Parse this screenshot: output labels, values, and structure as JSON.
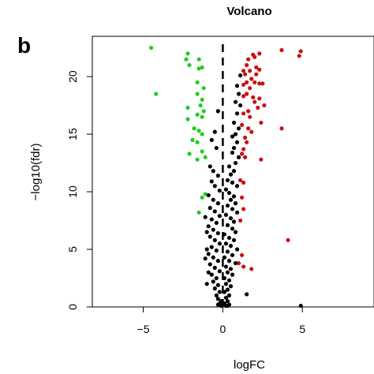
{
  "chart_data": {
    "type": "scatter",
    "title": "Volcano",
    "panel_label": "b",
    "xlabel": "logFC",
    "ylabel": "−log10(fdr)",
    "xlim": [
      -8.2,
      9.5
    ],
    "ylim": [
      0,
      23.5
    ],
    "xticks": [
      -5,
      0,
      5
    ],
    "xtick_labels": [
      "−5",
      "0",
      "5"
    ],
    "yticks": [
      0,
      5,
      10,
      15,
      20
    ],
    "ytick_labels": [
      "0",
      "5",
      "10",
      "15",
      "20"
    ],
    "grid": false,
    "legend": "none",
    "threshold_line_x": 0,
    "colors": {
      "down": "#22cc22",
      "up": "#cc1111",
      "ns": "#000000",
      "threshold": "#000000"
    },
    "series": [
      {
        "color_key": "down",
        "points": [
          [
            -4.5,
            22.5
          ],
          [
            -4.2,
            18.5
          ],
          [
            -2.2,
            22
          ],
          [
            -2.3,
            21.5
          ],
          [
            -2.1,
            21
          ],
          [
            -1.5,
            21.5
          ],
          [
            -1.5,
            20.7
          ],
          [
            -1.3,
            20.8
          ],
          [
            -1.6,
            19.5
          ],
          [
            -1.2,
            19
          ],
          [
            -1.6,
            18.5
          ],
          [
            -1.3,
            18
          ],
          [
            -1.4,
            17.5
          ],
          [
            -1.2,
            17
          ],
          [
            -2.2,
            17.3
          ],
          [
            -1.6,
            16.7
          ],
          [
            -1.3,
            16.5
          ],
          [
            -2.2,
            16.3
          ],
          [
            -1.8,
            15.5
          ],
          [
            -1.5,
            15.3
          ],
          [
            -1.3,
            15
          ],
          [
            -1.9,
            14.5
          ],
          [
            -1.6,
            14.3
          ],
          [
            -1.3,
            13.5
          ],
          [
            -2.1,
            13.3
          ],
          [
            -1.1,
            13
          ],
          [
            -1.6,
            12.8
          ],
          [
            -1.3,
            9.5
          ],
          [
            -1.1,
            9.8
          ],
          [
            -1.5,
            8.2
          ]
        ]
      },
      {
        "color_key": "up",
        "points": [
          [
            3.7,
            22.3
          ],
          [
            4.9,
            22.2
          ],
          [
            4.8,
            21.8
          ],
          [
            2.3,
            22
          ],
          [
            1.9,
            21.9
          ],
          [
            1.6,
            21.5
          ],
          [
            2.0,
            21.7
          ],
          [
            1.5,
            21
          ],
          [
            2.1,
            20.8
          ],
          [
            1.7,
            20.5
          ],
          [
            1.3,
            20.5
          ],
          [
            2.3,
            20.6
          ],
          [
            1.4,
            20.2
          ],
          [
            2.1,
            20.2
          ],
          [
            1.8,
            19.8
          ],
          [
            1.5,
            19.5
          ],
          [
            2.0,
            19.5
          ],
          [
            1.3,
            19.3
          ],
          [
            2.3,
            19.4
          ],
          [
            1.7,
            19
          ],
          [
            2.5,
            19.4
          ],
          [
            1.5,
            18.5
          ],
          [
            1.3,
            18.3
          ],
          [
            1.9,
            18.2
          ],
          [
            2.3,
            18.1
          ],
          [
            2.0,
            17.8
          ],
          [
            2.6,
            17.5
          ],
          [
            2.2,
            17.3
          ],
          [
            1.6,
            17.0
          ],
          [
            1.3,
            16.8
          ],
          [
            1.7,
            16.5
          ],
          [
            2.4,
            16.0
          ],
          [
            1.2,
            15.8
          ],
          [
            1.6,
            15.5
          ],
          [
            1.8,
            15.2
          ],
          [
            3.7,
            15.5
          ],
          [
            1.4,
            14.7
          ],
          [
            1.5,
            14.3
          ],
          [
            1.3,
            13.7
          ],
          [
            1.2,
            13.3
          ],
          [
            1.4,
            13
          ],
          [
            2.4,
            12.8
          ],
          [
            1.1,
            11
          ],
          [
            1.3,
            10.8
          ],
          [
            1.2,
            9.5
          ],
          [
            1.3,
            8.5
          ],
          [
            1.1,
            7.5
          ],
          [
            1.2,
            4.5
          ],
          [
            1.3,
            3.5
          ],
          [
            1.0,
            3.8
          ],
          [
            1.8,
            3.3
          ],
          [
            4.1,
            5.8
          ]
        ]
      },
      {
        "color_key": "ns",
        "points": [
          [
            1.1,
            20.1
          ],
          [
            0.9,
            19.2
          ],
          [
            1.0,
            18.5
          ],
          [
            0.8,
            17.8
          ],
          [
            1.1,
            17.5
          ],
          [
            0.9,
            16.8
          ],
          [
            0.7,
            16.0
          ],
          [
            1.0,
            15.5
          ],
          [
            0.8,
            15.0
          ],
          [
            0.6,
            14.8
          ],
          [
            0.9,
            14.3
          ],
          [
            0.7,
            13.8
          ],
          [
            0.6,
            13.4
          ],
          [
            1.0,
            13.0
          ],
          [
            0.8,
            12.5
          ],
          [
            0.4,
            12.2
          ],
          [
            0.7,
            11.8
          ],
          [
            0.5,
            11.5
          ],
          [
            0.3,
            11.0
          ],
          [
            0.6,
            10.8
          ],
          [
            0.9,
            10.5
          ],
          [
            0.2,
            10.2
          ],
          [
            0.4,
            9.9
          ],
          [
            0.7,
            9.6
          ],
          [
            0.5,
            9.3
          ],
          [
            0.8,
            9.0
          ],
          [
            0.3,
            8.8
          ],
          [
            0.6,
            8.5
          ],
          [
            0.9,
            8.2
          ],
          [
            0.2,
            8.0
          ],
          [
            0.5,
            7.7
          ],
          [
            0.7,
            7.4
          ],
          [
            0.3,
            7.1
          ],
          [
            0.6,
            6.8
          ],
          [
            0.8,
            6.5
          ],
          [
            0.1,
            6.3
          ],
          [
            0.4,
            6.0
          ],
          [
            0.7,
            5.8
          ],
          [
            0.2,
            5.5
          ],
          [
            0.5,
            5.3
          ],
          [
            0.9,
            5.0
          ],
          [
            0.3,
            4.8
          ],
          [
            0.6,
            4.5
          ],
          [
            0.1,
            4.3
          ],
          [
            0.4,
            4.0
          ],
          [
            0.8,
            3.8
          ],
          [
            0.2,
            3.5
          ],
          [
            0.5,
            3.3
          ],
          [
            0.3,
            3.0
          ],
          [
            0.6,
            2.8
          ],
          [
            0.1,
            2.5
          ],
          [
            0.4,
            2.3
          ],
          [
            0.2,
            2.0
          ],
          [
            0.5,
            1.8
          ],
          [
            0.3,
            1.5
          ],
          [
            0.1,
            1.3
          ],
          [
            0.4,
            1.0
          ],
          [
            0.2,
            0.8
          ],
          [
            0.3,
            0.5
          ],
          [
            0.1,
            0.3
          ],
          [
            0.2,
            0.1
          ],
          [
            0.4,
            0.2
          ],
          [
            0.3,
            0.1
          ],
          [
            -0.3,
            17.0
          ],
          [
            -0.5,
            15.2
          ],
          [
            -0.7,
            14.5
          ],
          [
            -0.4,
            13.8
          ],
          [
            -0.8,
            12.2
          ],
          [
            -0.6,
            11.8
          ],
          [
            -0.3,
            11.4
          ],
          [
            -0.7,
            10.9
          ],
          [
            -0.5,
            10.5
          ],
          [
            -0.2,
            10.1
          ],
          [
            -0.9,
            9.7
          ],
          [
            -0.6,
            9.3
          ],
          [
            -0.3,
            9.0
          ],
          [
            -0.8,
            8.6
          ],
          [
            -0.5,
            8.3
          ],
          [
            -0.2,
            7.9
          ],
          [
            -0.7,
            7.6
          ],
          [
            -0.4,
            7.3
          ],
          [
            -0.9,
            7.0
          ],
          [
            -0.6,
            6.7
          ],
          [
            -0.3,
            6.4
          ],
          [
            -0.8,
            6.1
          ],
          [
            -0.5,
            5.8
          ],
          [
            -0.2,
            5.5
          ],
          [
            -0.7,
            5.2
          ],
          [
            -0.4,
            4.9
          ],
          [
            -0.9,
            4.6
          ],
          [
            -0.6,
            4.3
          ],
          [
            -0.3,
            4.0
          ],
          [
            -0.8,
            3.7
          ],
          [
            -0.5,
            3.4
          ],
          [
            -0.2,
            3.1
          ],
          [
            -0.7,
            2.8
          ],
          [
            -0.4,
            2.5
          ],
          [
            -0.6,
            2.2
          ],
          [
            -0.3,
            1.9
          ],
          [
            -0.5,
            1.6
          ],
          [
            -0.2,
            1.3
          ],
          [
            -0.4,
            1.0
          ],
          [
            -0.3,
            0.7
          ],
          [
            -0.1,
            0.5
          ],
          [
            -0.2,
            0.3
          ],
          [
            -0.1,
            0.1
          ],
          [
            -0.3,
            0.2
          ],
          [
            -1.0,
            5.0
          ],
          [
            -1.1,
            4.2
          ],
          [
            -0.9,
            3.0
          ],
          [
            -1.0,
            2.0
          ],
          [
            -1.1,
            7.8
          ],
          [
            -1.0,
            6.5
          ],
          [
            1.5,
            1.1
          ],
          [
            4.9,
            0.1
          ]
        ]
      }
    ]
  }
}
